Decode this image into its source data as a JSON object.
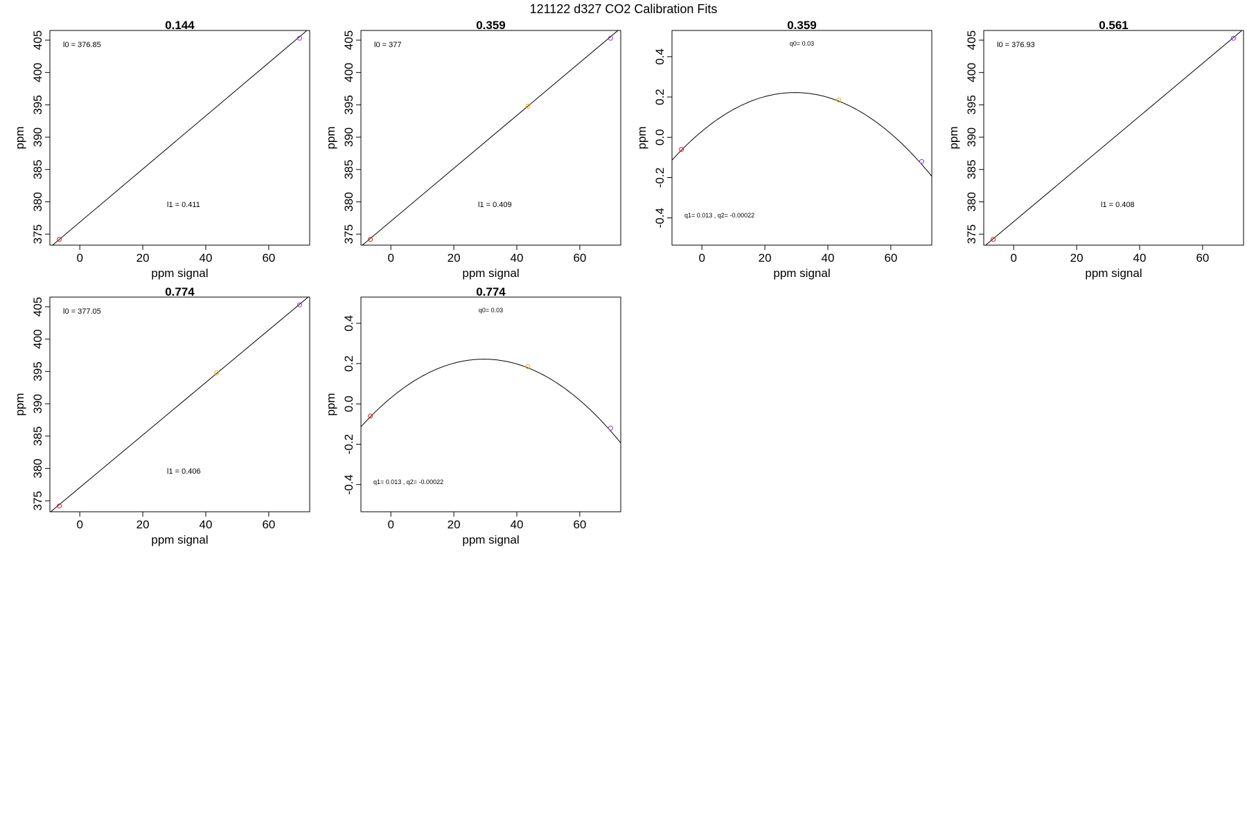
{
  "title": "121122   d327   CO2 Calibration Fits",
  "chart_data": [
    {
      "type": "scatter",
      "fit": "linear",
      "title": "0.144",
      "xlabel": "ppm signal",
      "ylabel": "ppm",
      "xlim": [
        -9.5,
        73
      ],
      "ylim": [
        373.3,
        406.5
      ],
      "xticks": [
        "0",
        "20",
        "40",
        "60"
      ],
      "yticks": [
        "375",
        "380",
        "385",
        "390",
        "395",
        "400",
        "405"
      ],
      "points": [
        {
          "x": -6.5,
          "y": 374.2,
          "color": "#e41a1c"
        },
        {
          "x": 69.8,
          "y": 405.3,
          "color": "#8a2be2"
        }
      ],
      "line": {
        "intercept": 376.85,
        "slope": 0.411
      },
      "annotations": [
        "l0 =  376.85",
        "l1 =  0.411"
      ]
    },
    {
      "type": "scatter",
      "fit": "linear",
      "title": "0.359",
      "xlabel": "ppm signal",
      "ylabel": "ppm",
      "xlim": [
        -9.5,
        73
      ],
      "ylim": [
        373.3,
        406.5
      ],
      "xticks": [
        "0",
        "20",
        "40",
        "60"
      ],
      "yticks": [
        "375",
        "380",
        "385",
        "390",
        "395",
        "400",
        "405"
      ],
      "points": [
        {
          "x": -6.5,
          "y": 374.2,
          "color": "#e41a1c"
        },
        {
          "x": 43.5,
          "y": 394.8,
          "color": "#ffa500"
        },
        {
          "x": 69.8,
          "y": 405.3,
          "color": "#8a2be2"
        }
      ],
      "line": {
        "intercept": 377.0,
        "slope": 0.409
      },
      "annotations": [
        "l0 =  377",
        "l1 =  0.409"
      ]
    },
    {
      "type": "scatter",
      "fit": "quadratic",
      "title": "0.359",
      "xlabel": "ppm signal",
      "ylabel": "ppm",
      "xlim": [
        -9.5,
        73
      ],
      "ylim": [
        -0.535,
        0.53
      ],
      "xticks": [
        "0",
        "20",
        "40",
        "60"
      ],
      "yticks": [
        "-0.4",
        "-0.2",
        "0.0",
        "0.2",
        "0.4"
      ],
      "points": [
        {
          "x": -6.5,
          "y": -0.06,
          "color": "#e41a1c"
        },
        {
          "x": 43.5,
          "y": 0.185,
          "color": "#ffa500"
        },
        {
          "x": 69.8,
          "y": -0.12,
          "color": "#8a2be2"
        }
      ],
      "curve": {
        "q0": 0.03,
        "q1": 0.013,
        "q2": -0.00022
      },
      "annotations": [
        "q0= 0.03",
        "q1= 0.013 , q2= -0.00022"
      ]
    },
    {
      "type": "scatter",
      "fit": "linear",
      "title": "0.561",
      "xlabel": "ppm signal",
      "ylabel": "ppm",
      "xlim": [
        -9.5,
        73
      ],
      "ylim": [
        373.3,
        406.5
      ],
      "xticks": [
        "0",
        "20",
        "40",
        "60"
      ],
      "yticks": [
        "375",
        "380",
        "385",
        "390",
        "395",
        "400",
        "405"
      ],
      "points": [
        {
          "x": -6.5,
          "y": 374.2,
          "color": "#e41a1c"
        },
        {
          "x": 69.8,
          "y": 405.3,
          "color": "#8a2be2"
        }
      ],
      "line": {
        "intercept": 376.93,
        "slope": 0.408
      },
      "annotations": [
        "l0 =  376.93",
        "l1 =  0.408"
      ]
    },
    {
      "type": "scatter",
      "fit": "linear",
      "title": "0.774",
      "xlabel": "ppm signal",
      "ylabel": "ppm",
      "xlim": [
        -9.5,
        73
      ],
      "ylim": [
        373.3,
        406.5
      ],
      "xticks": [
        "0",
        "20",
        "40",
        "60"
      ],
      "yticks": [
        "375",
        "380",
        "385",
        "390",
        "395",
        "400",
        "405"
      ],
      "points": [
        {
          "x": -6.5,
          "y": 374.2,
          "color": "#e41a1c"
        },
        {
          "x": 43.5,
          "y": 394.8,
          "color": "#ffa500"
        },
        {
          "x": 69.8,
          "y": 405.3,
          "color": "#8a2be2"
        }
      ],
      "line": {
        "intercept": 377.05,
        "slope": 0.406
      },
      "annotations": [
        "l0 =  377.05",
        "l1 =  0.406"
      ]
    },
    {
      "type": "scatter",
      "fit": "quadratic",
      "title": "0.774",
      "xlabel": "ppm signal",
      "ylabel": "ppm",
      "xlim": [
        -9.5,
        73
      ],
      "ylim": [
        -0.535,
        0.53
      ],
      "xticks": [
        "0",
        "20",
        "40",
        "60"
      ],
      "yticks": [
        "-0.4",
        "-0.2",
        "0.0",
        "0.2",
        "0.4"
      ],
      "points": [
        {
          "x": -6.5,
          "y": -0.06,
          "color": "#e41a1c"
        },
        {
          "x": 43.5,
          "y": 0.185,
          "color": "#ffa500"
        },
        {
          "x": 69.8,
          "y": -0.12,
          "color": "#8a2be2"
        }
      ],
      "curve": {
        "q0": 0.03,
        "q1": 0.013,
        "q2": -0.00022
      },
      "annotations": [
        "q0= 0.03",
        "q1= 0.013 , q2= -0.00022"
      ]
    }
  ]
}
